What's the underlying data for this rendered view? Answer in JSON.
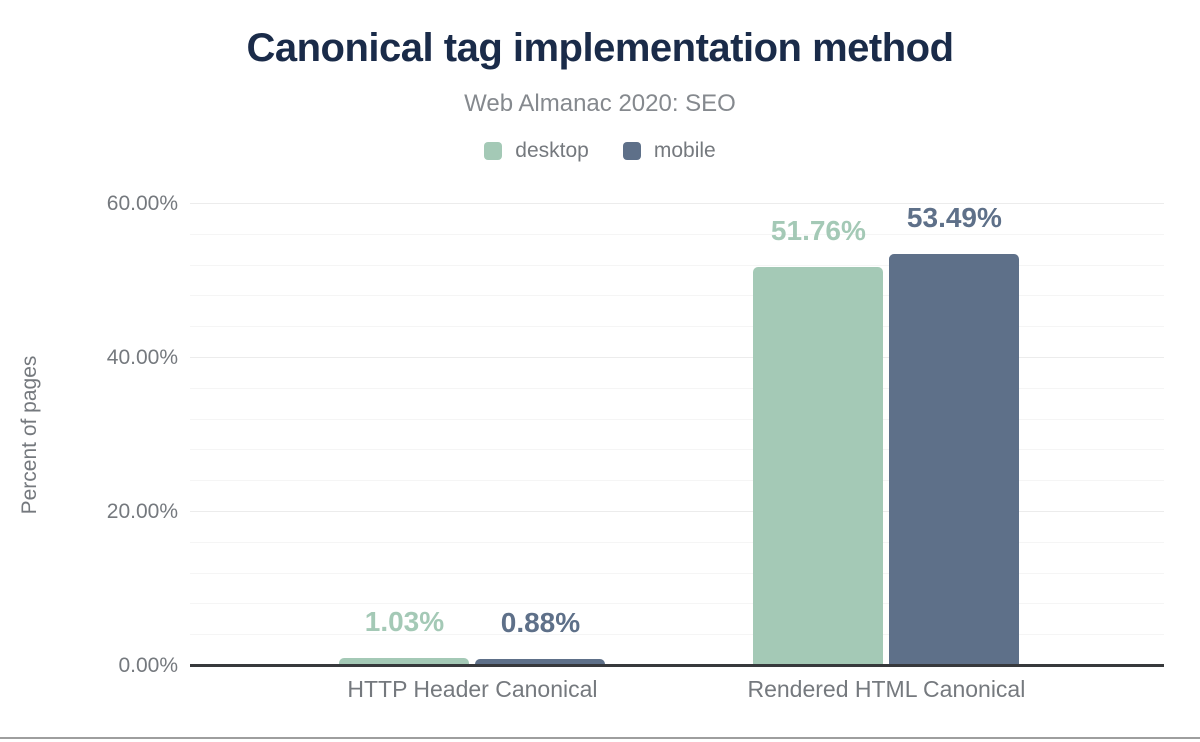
{
  "chart_data": {
    "type": "bar",
    "title": "Canonical tag implementation method",
    "subtitle": "Web Almanac 2020: SEO",
    "categories": [
      "HTTP Header Canonical",
      "Rendered HTML Canonical"
    ],
    "series": [
      {
        "name": "desktop",
        "color": "#a4c9b6",
        "values": [
          1.03,
          51.76
        ],
        "value_labels": [
          "1.03%",
          "51.76%"
        ]
      },
      {
        "name": "mobile",
        "color": "#5e7089",
        "values": [
          0.88,
          53.49
        ],
        "value_labels": [
          "0.88%",
          "53.49%"
        ]
      }
    ],
    "xlabel": "",
    "ylabel": "Percent of pages",
    "ylim": [
      0,
      62
    ],
    "yticks": [
      {
        "value": 0,
        "label": "0.00%"
      },
      {
        "value": 20,
        "label": "20.00%"
      },
      {
        "value": 40,
        "label": "40.00%"
      },
      {
        "value": 60,
        "label": "60.00%"
      }
    ],
    "grid": {
      "major_interval": 20,
      "minor_interval": 4,
      "minor_max": 56
    },
    "legend_position": "top-center"
  }
}
